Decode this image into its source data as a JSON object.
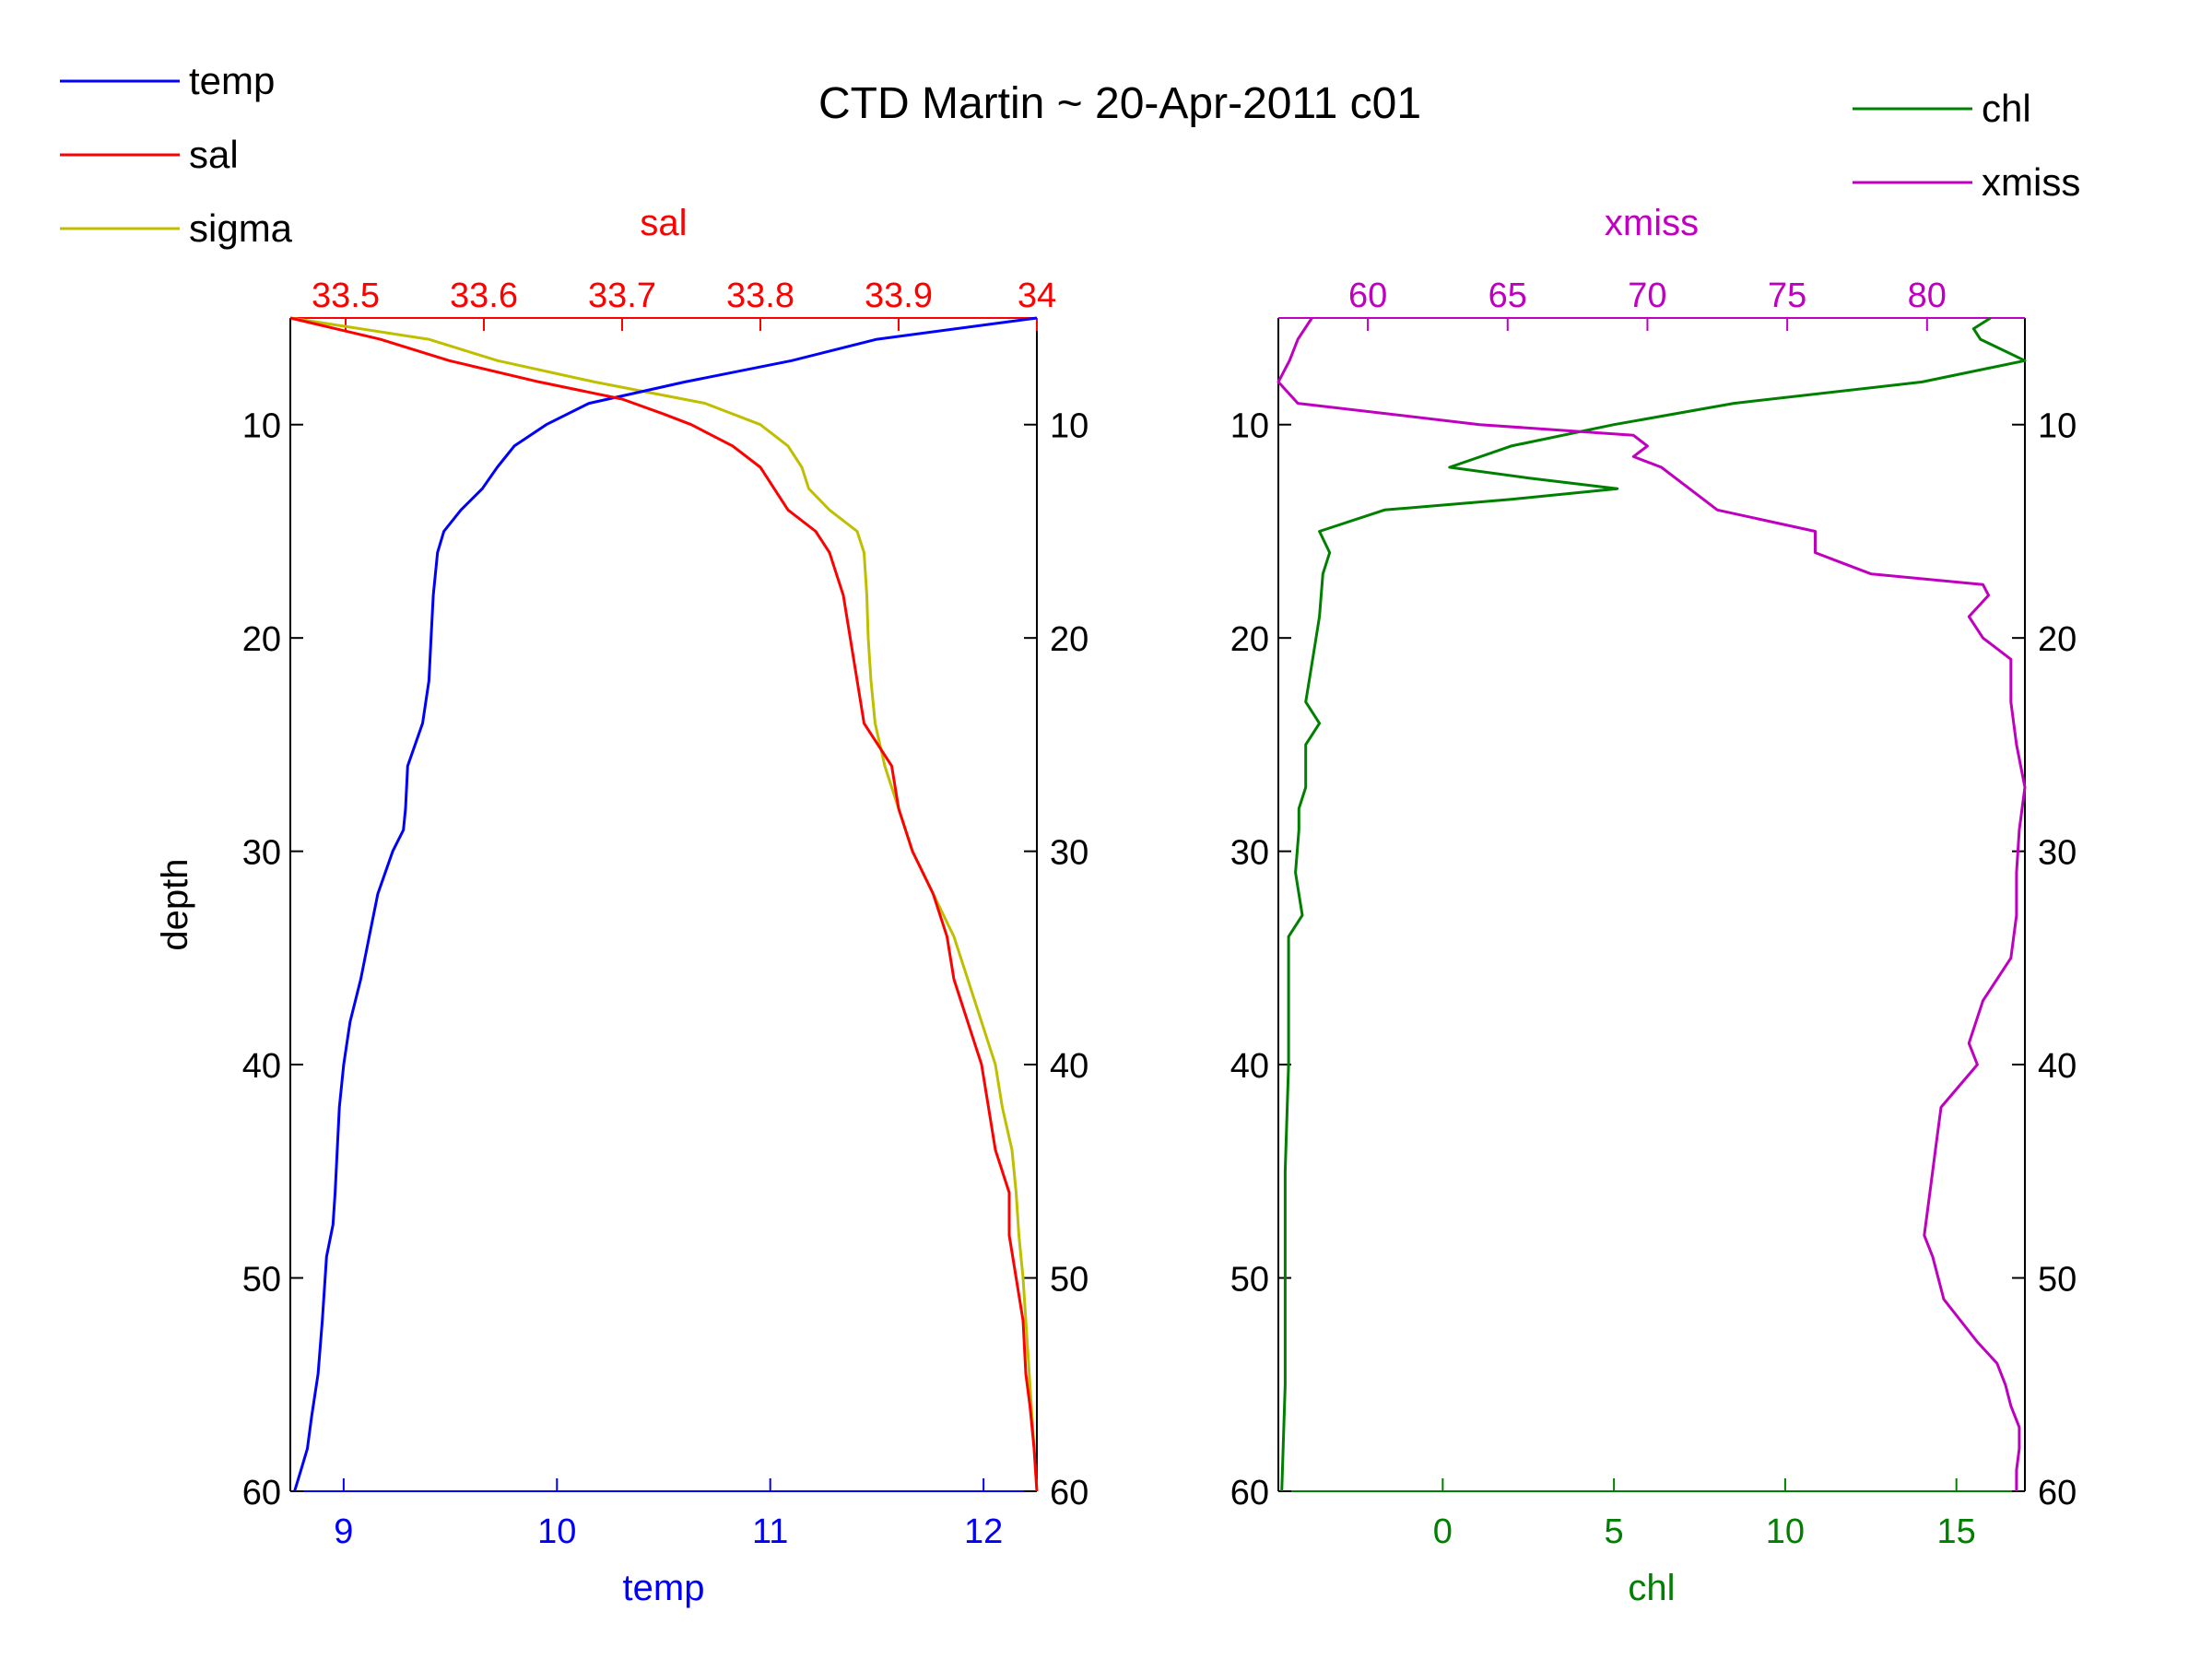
{
  "title": "CTD Martin ~ 20-Apr-2011 c01",
  "legend_left": [
    {
      "label": "temp",
      "color": "#0000ff"
    },
    {
      "label": "sal",
      "color": "#ff0000"
    },
    {
      "label": "sigma",
      "color": "#bfbf00"
    }
  ],
  "legend_right": [
    {
      "label": "chl",
      "color": "#008000"
    },
    {
      "label": "xmiss",
      "color": "#bf00bf"
    }
  ],
  "chart_data": [
    {
      "type": "line",
      "ylabel": "depth",
      "ylim": [
        5,
        60
      ],
      "y_reversed": true,
      "yticks": [
        10,
        20,
        30,
        40,
        50,
        60
      ],
      "axes": {
        "bottom": {
          "label": "temp",
          "color": "#0000ff",
          "lim": [
            8.75,
            12.25
          ],
          "ticks": [
            9,
            10,
            11,
            12
          ]
        },
        "top": {
          "label": "sal",
          "color": "#ff0000",
          "lim": [
            33.46,
            34.0
          ],
          "ticks": [
            33.5,
            33.6,
            33.7,
            33.8,
            33.9,
            34
          ]
        }
      },
      "series": [
        {
          "name": "temp",
          "axis": "bottom",
          "color": "#0000ff",
          "depth": [
            5,
            6,
            7,
            8,
            9,
            10,
            11,
            12,
            13,
            14,
            15,
            16,
            18,
            20,
            22,
            24,
            26,
            28,
            29,
            30,
            32,
            34,
            36,
            38,
            40,
            42,
            44,
            46,
            47.5,
            49,
            52,
            54.5,
            56.5,
            58,
            59,
            60
          ],
          "values": [
            12.25,
            11.5,
            11.1,
            10.6,
            10.15,
            9.95,
            9.8,
            9.72,
            9.65,
            9.55,
            9.47,
            9.44,
            9.42,
            9.41,
            9.4,
            9.37,
            9.3,
            9.29,
            9.28,
            9.23,
            9.16,
            9.12,
            9.08,
            9.03,
            9.0,
            8.98,
            8.97,
            8.96,
            8.95,
            8.92,
            8.9,
            8.88,
            8.85,
            8.83,
            8.8,
            8.77
          ]
        },
        {
          "name": "sal",
          "axis": "top",
          "color": "#ff0000",
          "depth": [
            5,
            6,
            7,
            8,
            8.8,
            9.5,
            10,
            11,
            12,
            13,
            14,
            15,
            16,
            18,
            20,
            22,
            24,
            26,
            28,
            30,
            32,
            34,
            36,
            38,
            40,
            42,
            44,
            46,
            48,
            50,
            52,
            54.5,
            56,
            58,
            60
          ],
          "values": [
            33.46,
            33.525,
            33.575,
            33.64,
            33.7,
            33.73,
            33.75,
            33.78,
            33.8,
            33.81,
            33.82,
            33.84,
            33.85,
            33.86,
            33.865,
            33.87,
            33.875,
            33.895,
            33.9,
            33.91,
            33.925,
            33.935,
            33.94,
            33.95,
            33.96,
            33.965,
            33.97,
            33.98,
            33.98,
            33.985,
            33.99,
            33.992,
            33.995,
            33.998,
            34.0
          ]
        }
      ],
      "unlabeled_series": [
        {
          "color": "#bfbf00",
          "axis": "top",
          "legend": "sigma",
          "depth": [
            5,
            6,
            7,
            8,
            8.5,
            9,
            10,
            11,
            12,
            13,
            14,
            15,
            16,
            18,
            20,
            22,
            24,
            26,
            28,
            30,
            32,
            34,
            36,
            38,
            40,
            42,
            44,
            46,
            48,
            50,
            52,
            54,
            56,
            58,
            60
          ],
          "values": [
            33.46,
            33.56,
            33.61,
            33.68,
            33.72,
            33.76,
            33.8,
            33.82,
            33.83,
            33.835,
            33.85,
            33.87,
            33.875,
            33.877,
            33.878,
            33.88,
            33.883,
            33.89,
            33.9,
            33.91,
            33.925,
            33.94,
            33.95,
            33.96,
            33.97,
            33.975,
            33.982,
            33.985,
            33.987,
            33.99,
            33.992,
            33.994,
            33.996,
            33.998,
            34.0
          ]
        }
      ]
    },
    {
      "type": "line",
      "ylim": [
        5,
        60
      ],
      "y_reversed": true,
      "yticks": [
        10,
        20,
        30,
        40,
        50,
        60
      ],
      "axes": {
        "bottom": {
          "label": "chl",
          "color": "#008000",
          "lim": [
            -4.8,
            17
          ],
          "ticks": [
            0,
            5,
            10,
            15
          ]
        },
        "top": {
          "label": "xmiss",
          "color": "#bf00bf",
          "lim": [
            56.8,
            83.5
          ],
          "ticks": [
            60,
            65,
            70,
            75,
            80
          ]
        }
      },
      "series": [
        {
          "name": "chl",
          "axis": "bottom",
          "color": "#008000",
          "depth": [
            5,
            5.5,
            6,
            7,
            8,
            9,
            10,
            11,
            12,
            12.5,
            13,
            13.5,
            14,
            15,
            16,
            17,
            19,
            20,
            21,
            23,
            24,
            25,
            27,
            28,
            29,
            31,
            33,
            34,
            36,
            40,
            45,
            50,
            55,
            60
          ],
          "values": [
            16.0,
            15.5,
            15.7,
            17.0,
            14.0,
            8.5,
            5.0,
            2.0,
            0.2,
            2.5,
            5.1,
            2.0,
            -1.7,
            -3.6,
            -3.3,
            -3.5,
            -3.6,
            -3.7,
            -3.8,
            -4.0,
            -3.6,
            -4.0,
            -4.0,
            -4.2,
            -4.2,
            -4.3,
            -4.1,
            -4.5,
            -4.5,
            -4.5,
            -4.6,
            -4.6,
            -4.6,
            -4.7
          ]
        },
        {
          "name": "xmiss",
          "axis": "top",
          "color": "#bf00bf",
          "depth": [
            5,
            6,
            7,
            8,
            9,
            10,
            10.5,
            11,
            11.5,
            12,
            13,
            14,
            15,
            16,
            16.5,
            17,
            17.5,
            18,
            19,
            20,
            21,
            23,
            25,
            27,
            29,
            31,
            33,
            35,
            37,
            39,
            40,
            42,
            44,
            46,
            48,
            49,
            51,
            53,
            54,
            55,
            56,
            57,
            58,
            59,
            60
          ],
          "values": [
            58.0,
            57.5,
            57.2,
            56.8,
            57.5,
            64.0,
            69.5,
            70.0,
            69.5,
            70.5,
            71.5,
            72.5,
            76.0,
            76.0,
            77.0,
            78.0,
            82.0,
            82.2,
            81.5,
            82.0,
            83.0,
            83.0,
            83.2,
            83.5,
            83.3,
            83.2,
            83.2,
            83.0,
            82.0,
            81.5,
            81.8,
            80.5,
            80.3,
            80.1,
            79.9,
            80.2,
            80.6,
            81.8,
            82.5,
            82.8,
            83.0,
            83.3,
            83.3,
            83.2,
            83.2
          ]
        }
      ]
    }
  ]
}
